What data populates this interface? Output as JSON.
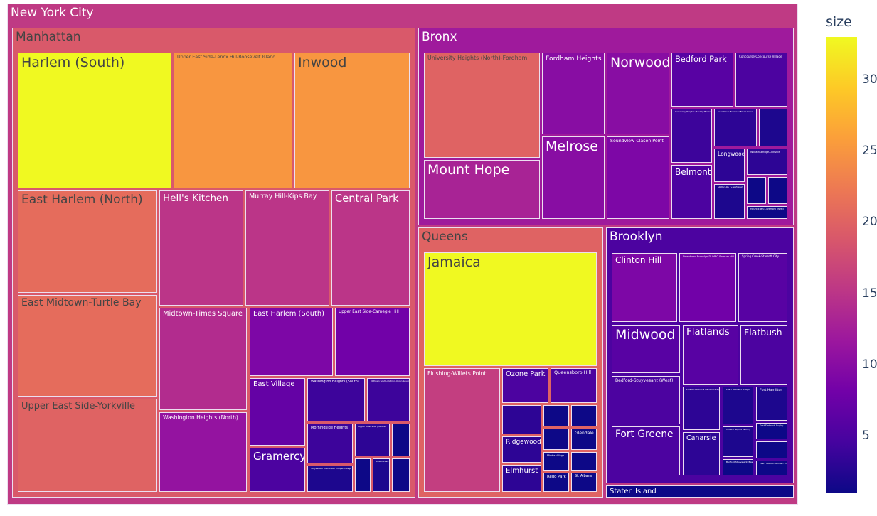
{
  "chart_data": {
    "type": "treemap",
    "color_by": "size",
    "colorscale": [
      "#0d0887",
      "#46039f",
      "#7201a8",
      "#9c179e",
      "#bd3786",
      "#d8576b",
      "#ed7953",
      "#fb9f3a",
      "#fdca26",
      "#f0f921"
    ],
    "colorbar": {
      "title": "size",
      "range": [
        1,
        33
      ],
      "ticks": [
        5,
        10,
        15,
        20,
        25,
        30
      ]
    },
    "root": {
      "label": "New York City",
      "value": 15.5,
      "children": [
        {
          "label": "Manhattan",
          "value": 19,
          "children": [
            {
              "label": "Harlem (South)",
              "value": 33
            },
            {
              "label": "Upper East Side-Lenox Hill-Roosevelt Island",
              "value": 25
            },
            {
              "label": "Inwood",
              "value": 25
            },
            {
              "label": "East Harlem (North)",
              "value": 21
            },
            {
              "label": "East Midtown-Turtle Bay",
              "value": 21
            },
            {
              "label": "Upper East Side-Yorkville",
              "value": 20
            },
            {
              "label": "Hell's Kitchen",
              "value": 15
            },
            {
              "label": "Murray Hill-Kips Bay",
              "value": 15
            },
            {
              "label": "Central Park",
              "value": 15
            },
            {
              "label": "Midtown-Times Square",
              "value": 14
            },
            {
              "label": "Washington Heights (North)",
              "value": 11
            },
            {
              "label": "East Harlem (South)",
              "value": 9
            },
            {
              "label": "Upper East Side-Carnegie Hill",
              "value": 8
            },
            {
              "label": "East Village",
              "value": 7
            },
            {
              "label": "Gramercy",
              "value": 5
            },
            {
              "label": "Washington Heights (South)",
              "value": 4
            },
            {
              "label": "Midtown South-Flatiron-Union Square",
              "value": 4
            },
            {
              "label": "Morningside Heights",
              "value": 4
            },
            {
              "label": "Upper West Side (Central)",
              "value": 3
            },
            {
              "label": "",
              "value": 1
            },
            {
              "label": "Stuyvesant Town-Peter Cooper Village",
              "value": 2
            },
            {
              "label": "",
              "value": 1
            },
            {
              "label": "Lower East Side",
              "value": 2
            },
            {
              "label": "",
              "value": 1
            }
          ]
        },
        {
          "label": "Bronx",
          "value": 12,
          "children": [
            {
              "label": "University Heights (North)-Fordham",
              "value": 20
            },
            {
              "label": "Mount Hope",
              "value": 13
            },
            {
              "label": "Fordham Heights",
              "value": 10
            },
            {
              "label": "Melrose",
              "value": 10
            },
            {
              "label": "Norwood",
              "value": 10
            },
            {
              "label": "Soundview-Clason Point",
              "value": 9
            },
            {
              "label": "Bedford Park",
              "value": 6
            },
            {
              "label": "Concourse-Concourse Village",
              "value": 5
            },
            {
              "label": "University Heights (South)-Morris Heights",
              "value": 4
            },
            {
              "label": "Soundview-Bruckner-Bronx River",
              "value": 3
            },
            {
              "label": "",
              "value": 2
            },
            {
              "label": "Belmont",
              "value": 5
            },
            {
              "label": "Longwood",
              "value": 3
            },
            {
              "label": "Williamsbridge-Olinville",
              "value": 3
            },
            {
              "label": "Pelham Gardens",
              "value": 2
            },
            {
              "label": "",
              "value": 1
            },
            {
              "label": "",
              "value": 1
            },
            {
              "label": "Mount Eden-Claremont (West)",
              "value": 1
            }
          ]
        },
        {
          "label": "Queens",
          "value": 20,
          "children": [
            {
              "label": "Jamaica",
              "value": 33
            },
            {
              "label": "Flushing-Willets Point",
              "value": 16
            },
            {
              "label": "Ozone Park",
              "value": 5
            },
            {
              "label": "Queensboro Hill",
              "value": 5
            },
            {
              "label": "",
              "value": 3
            },
            {
              "label": "Ridgewood",
              "value": 3
            },
            {
              "label": "Elmhurst",
              "value": 3
            },
            {
              "label": "",
              "value": 1
            },
            {
              "label": "",
              "value": 1
            },
            {
              "label": "",
              "value": 1
            },
            {
              "label": "Glendale",
              "value": 1
            },
            {
              "label": "Middle Village",
              "value": 1
            },
            {
              "label": "",
              "value": 1
            },
            {
              "label": "Rego Park",
              "value": 1
            },
            {
              "label": "St. Albans",
              "value": 1
            }
          ]
        },
        {
          "label": "Brooklyn",
          "value": 5,
          "children": [
            {
              "label": "Clinton Hill",
              "value": 9
            },
            {
              "label": "Downtown Brooklyn-DUMBO-Boerum Hill",
              "value": 8
            },
            {
              "label": "Spring Creek-Starrett City",
              "value": 6
            },
            {
              "label": "Midwood",
              "value": 6
            },
            {
              "label": "Flatlands",
              "value": 6
            },
            {
              "label": "Flatbush",
              "value": 5
            },
            {
              "label": "Bedford-Stuyvesant (West)",
              "value": 5
            },
            {
              "label": "Fort Greene",
              "value": 5
            },
            {
              "label": "Prospect Lefferts Gardens-Wingate",
              "value": 3
            },
            {
              "label": "Canarsie",
              "value": 3
            },
            {
              "label": "East Flatbush-Farragut",
              "value": 2
            },
            {
              "label": "Fort Hamilton",
              "value": 2
            },
            {
              "label": "Crown Heights (North)",
              "value": 2
            },
            {
              "label": "East Flatbush-Rugby",
              "value": 1
            },
            {
              "label": "",
              "value": 1
            },
            {
              "label": "Bedford-Stuyvesant (East)",
              "value": 1
            },
            {
              "label": "East Flatbush-Remsen Village",
              "value": 1
            }
          ]
        },
        {
          "label": "Staten Island",
          "value": 1,
          "children": []
        }
      ]
    }
  }
}
